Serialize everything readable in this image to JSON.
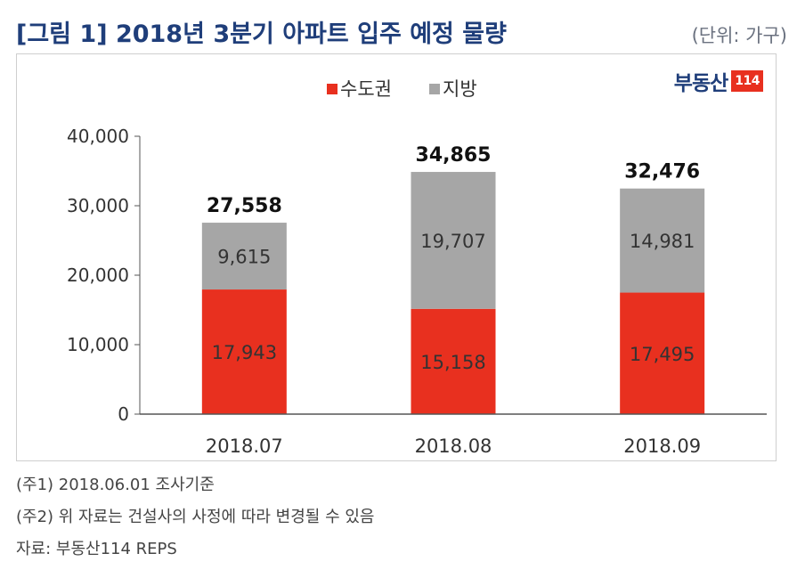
{
  "header": {
    "title": "[그림 1] 2018년 3분기 아파트 입주 예정 물량",
    "unit": "(단위: 가구)"
  },
  "logo": {
    "text": "부동산",
    "badge": "114"
  },
  "chart_data": {
    "type": "bar",
    "stacked": true,
    "categories": [
      "2018.07",
      "2018.08",
      "2018.09"
    ],
    "series": [
      {
        "name": "수도권",
        "color": "#e8301f",
        "values": [
          17943,
          15158,
          17495
        ],
        "labels": [
          "17,943",
          "15,158",
          "17,495"
        ]
      },
      {
        "name": "지방",
        "color": "#a6a6a6",
        "values": [
          9615,
          19707,
          14981
        ],
        "labels": [
          "9,615",
          "19,707",
          "14,981"
        ]
      }
    ],
    "totals": [
      27558,
      34865,
      32476
    ],
    "total_labels": [
      "27,558",
      "34,865",
      "32,476"
    ],
    "ylim": [
      0,
      40000
    ],
    "yticks": [
      0,
      10000,
      20000,
      30000,
      40000
    ],
    "ytick_labels": [
      "0",
      "10,000",
      "20,000",
      "30,000",
      "40,000"
    ],
    "legend_position": "top-center",
    "grid": false
  },
  "notes": [
    "(주1) 2018.06.01 조사기준",
    "(주2) 위 자료는 건설사의 사정에 따라 변경될 수 있음",
    "자료: 부동산114 REPS"
  ]
}
